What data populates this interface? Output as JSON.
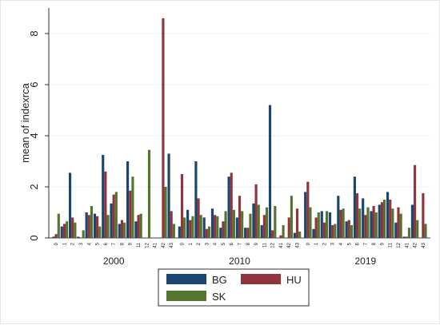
{
  "chart_data": {
    "type": "bar",
    "ylabel": "mean of indexrca",
    "ylim": [
      0,
      9
    ],
    "yticks": [
      0,
      2,
      4,
      6,
      8
    ],
    "grid": true,
    "legend_position": "bottom",
    "colors": {
      "BG": "#1a476f",
      "HU": "#90353b",
      "SK": "#55752f"
    },
    "groups": [
      {
        "label": "2000",
        "categories": [
          "0",
          "1",
          "2",
          "3",
          "4",
          "5",
          "6",
          "7",
          "8",
          "9",
          "11",
          "12",
          "41",
          "42",
          "43"
        ],
        "series": [
          {
            "name": "BG",
            "values": [
              0.05,
              0.45,
              2.55,
              0.05,
              1.0,
              0.95,
              3.25,
              1.35,
              0.55,
              3.0,
              0.65,
              0.0,
              0.0,
              0.0,
              3.3
            ]
          },
          {
            "name": "HU",
            "values": [
              0.15,
              0.55,
              0.8,
              0.0,
              0.9,
              0.85,
              2.6,
              1.7,
              0.7,
              1.85,
              0.9,
              0.0,
              0.0,
              8.6,
              1.05
            ]
          },
          {
            "name": "SK",
            "values": [
              0.95,
              0.65,
              0.6,
              0.3,
              1.25,
              0.45,
              0.9,
              1.8,
              0.6,
              2.4,
              0.95,
              3.45,
              0.0,
              2.0,
              0.55
            ]
          }
        ]
      },
      {
        "label": "2010",
        "categories": [
          "0",
          "1",
          "2",
          "3",
          "4",
          "5",
          "6",
          "7",
          "8",
          "9",
          "11",
          "12",
          "41",
          "42",
          "43"
        ],
        "series": [
          {
            "name": "BG",
            "values": [
              0.45,
              1.1,
              3.0,
              0.8,
              1.15,
              0.4,
              2.4,
              0.8,
              0.4,
              1.35,
              0.5,
              5.2,
              0.0,
              0.0,
              0.2
            ]
          },
          {
            "name": "HU",
            "values": [
              2.5,
              0.7,
              1.55,
              0.35,
              0.9,
              0.65,
              2.55,
              1.65,
              0.4,
              2.1,
              0.9,
              0.3,
              0.1,
              0.8,
              1.15
            ]
          },
          {
            "name": "SK",
            "values": [
              0.8,
              0.85,
              0.9,
              0.45,
              0.85,
              1.05,
              1.1,
              1.05,
              0.95,
              1.3,
              1.2,
              1.25,
              0.5,
              1.65,
              0.25
            ]
          }
        ]
      },
      {
        "label": "2019",
        "categories": [
          "0",
          "1",
          "2",
          "3",
          "4",
          "5",
          "6",
          "7",
          "8",
          "9",
          "11",
          "12",
          "41",
          "42",
          "43"
        ],
        "series": [
          {
            "name": "BG",
            "values": [
              1.8,
              0.35,
              1.05,
              1.0,
              1.65,
              0.65,
              2.4,
              1.55,
              1.05,
              1.3,
              1.8,
              0.6,
              0.05,
              1.3,
              0.0
            ]
          },
          {
            "name": "HU",
            "values": [
              2.2,
              0.8,
              0.6,
              0.5,
              1.1,
              0.7,
              1.75,
              0.9,
              1.25,
              1.4,
              1.5,
              1.2,
              0.05,
              2.85,
              1.75
            ]
          },
          {
            "name": "SK",
            "values": [
              1.2,
              1.0,
              1.05,
              0.55,
              1.15,
              0.5,
              1.15,
              1.2,
              1.0,
              1.5,
              1.15,
              0.95,
              0.4,
              0.7,
              0.55
            ]
          }
        ]
      }
    ],
    "legend": [
      {
        "name": "BG"
      },
      {
        "name": "HU"
      },
      {
        "name": "SK"
      }
    ]
  }
}
